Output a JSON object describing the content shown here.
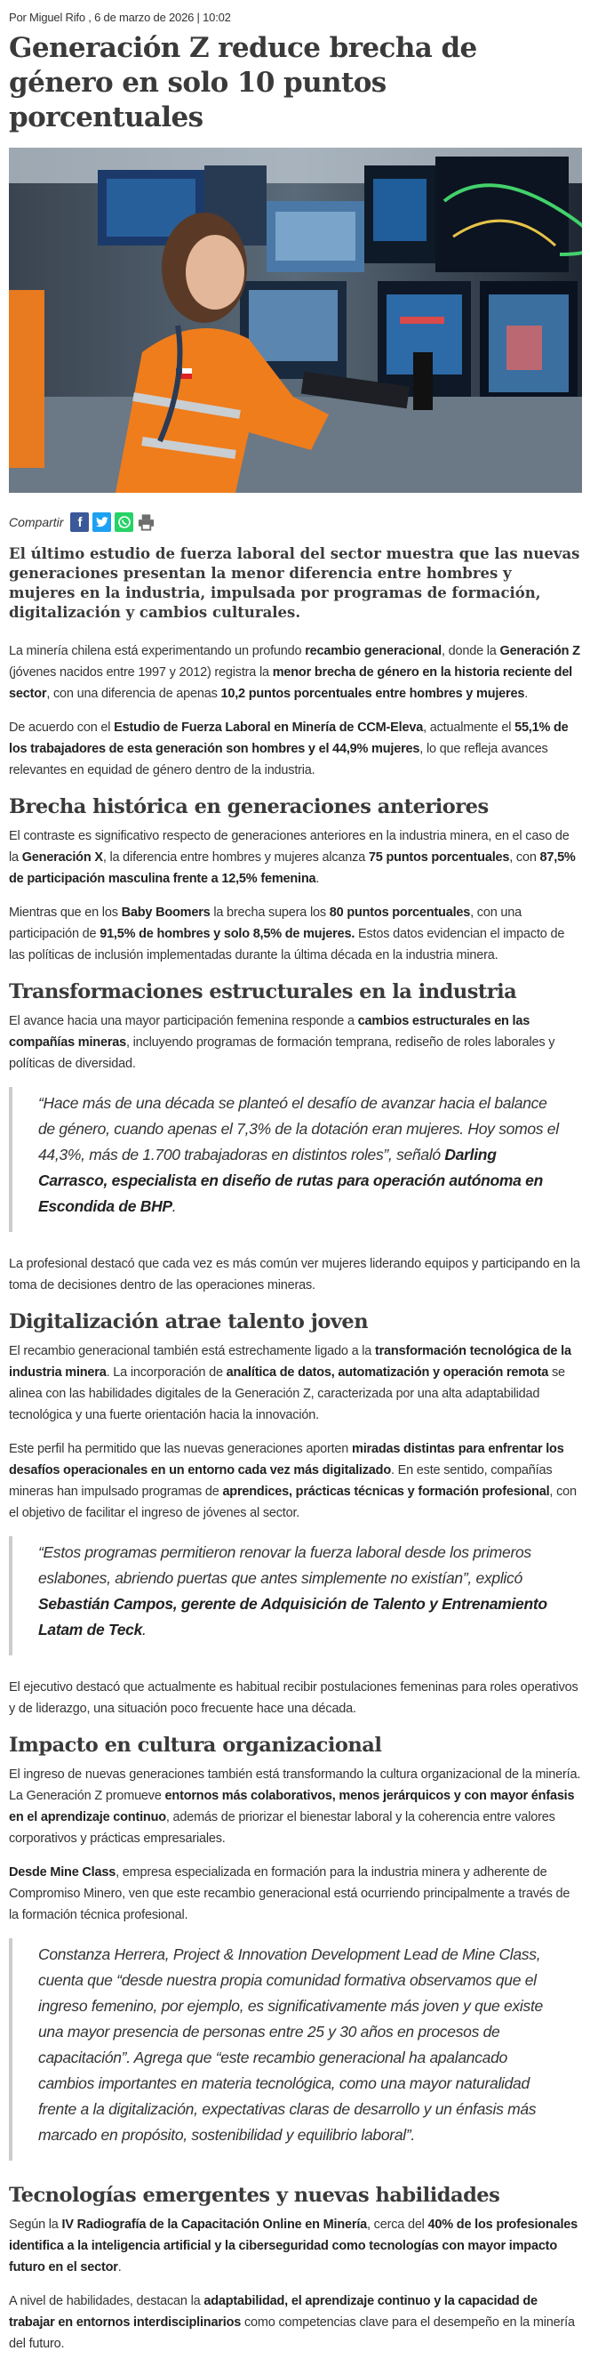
{
  "byline": "Por Miguel Rifo , 6 de marzo de 2026 | 10:02",
  "title": "Generación Z reduce brecha de género en solo 10 puntos porcentuales",
  "share": {
    "label": "Compartir",
    "icons": [
      "facebook-icon",
      "twitter-icon",
      "whatsapp-icon",
      "print-icon"
    ],
    "colors": {
      "facebook": "#3b5998",
      "twitter": "#1da1f2",
      "whatsapp": "#25d366",
      "print": "#6d6d6d"
    }
  },
  "lead": "El último estudio de fuerza laboral del sector muestra que las nuevas generaciones presentan la menor diferencia entre hombres y mujeres en la industria, impulsada por programas de formación, digitalización y cambios culturales.",
  "blocks": [
    {
      "type": "p",
      "segments": [
        [
          "La minería chilena está experimentando un profundo ",
          0
        ],
        [
          "recambio generacional",
          1
        ],
        [
          ", donde la ",
          0
        ],
        [
          "Generación Z",
          1
        ],
        [
          " (jóvenes nacidos entre 1997 y 2012) registra la ",
          0
        ],
        [
          "menor brecha de género en la historia reciente del sector",
          1
        ],
        [
          ", con una diferencia de apenas ",
          0
        ],
        [
          "10,2 puntos porcentuales entre hombres y mujeres",
          1
        ],
        [
          ".",
          0
        ]
      ]
    },
    {
      "type": "p",
      "segments": [
        [
          "De acuerdo con el ",
          0
        ],
        [
          "Estudio de Fuerza Laboral en Minería de CCM-Eleva",
          1
        ],
        [
          ", actualmente el ",
          0
        ],
        [
          "55,1% de los trabajadores de esta generación son hombres y el 44,9% mujeres",
          1
        ],
        [
          ", lo que refleja avances relevantes en equidad de género dentro de la industria.",
          0
        ]
      ]
    },
    {
      "type": "h2",
      "text": "Brecha histórica en generaciones anteriores"
    },
    {
      "type": "p",
      "segments": [
        [
          "El contraste es significativo respecto de generaciones anteriores en la industria minera, en el caso de la ",
          0
        ],
        [
          "Generación X",
          1
        ],
        [
          ", la diferencia entre hombres y mujeres alcanza ",
          0
        ],
        [
          "75 puntos porcentuales",
          1
        ],
        [
          ", con ",
          0
        ],
        [
          "87,5% de participación masculina frente a 12,5% femenina",
          1
        ],
        [
          ".",
          0
        ]
      ]
    },
    {
      "type": "p",
      "segments": [
        [
          "Mientras que en los ",
          0
        ],
        [
          "Baby Boomers",
          1
        ],
        [
          " la brecha supera los ",
          0
        ],
        [
          "80 puntos porcentuales",
          1
        ],
        [
          ", con una participación de ",
          0
        ],
        [
          "91,5% de hombres y solo 8,5% de mujeres.",
          1
        ],
        [
          " Estos datos evidencian el impacto de las políticas de inclusión implementadas durante la última década en la industria minera.",
          0
        ]
      ]
    },
    {
      "type": "h2",
      "text": "Transformaciones estructurales en la industria"
    },
    {
      "type": "p",
      "segments": [
        [
          "El avance hacia una mayor participación femenina responde a ",
          0
        ],
        [
          "cambios estructurales en las compañías mineras",
          1
        ],
        [
          ", incluyendo programas de formación temprana, rediseño de roles laborales y políticas de diversidad.",
          0
        ]
      ]
    },
    {
      "type": "quote",
      "segments": [
        [
          "“Hace más de una década se planteó el desafío de avanzar hacia el balance de género, cuando apenas el 7,3% de la dotación eran mujeres. Hoy somos el 44,3%, más de 1.700 trabajadoras en distintos roles”, señaló ",
          0
        ],
        [
          "Darling Carrasco, especialista en diseño de rutas para operación autónoma en Escondida de BHP",
          1
        ],
        [
          ".",
          0
        ]
      ]
    },
    {
      "type": "p",
      "segments": [
        [
          "La profesional destacó que cada vez es más común ver mujeres liderando equipos y participando en la toma de decisiones dentro de las operaciones mineras.",
          0
        ]
      ]
    },
    {
      "type": "h2",
      "text": "Digitalización atrae talento joven"
    },
    {
      "type": "p",
      "segments": [
        [
          "El recambio generacional también está estrechamente ligado a la ",
          0
        ],
        [
          "transformación tecnológica de la industria minera",
          1
        ],
        [
          ". La incorporación de ",
          0
        ],
        [
          "analítica de datos, automatización y operación remota",
          1
        ],
        [
          " se alinea con las habilidades digitales de la Generación Z, caracterizada por una alta adaptabilidad tecnológica y una fuerte orientación hacia la innovación.",
          0
        ]
      ]
    },
    {
      "type": "p",
      "segments": [
        [
          "Este perfil ha permitido que las nuevas generaciones aporten ",
          0
        ],
        [
          "miradas distintas para enfrentar los desafíos operacionales en un entorno cada vez más digitalizado",
          1
        ],
        [
          ". En este sentido, compañías mineras han impulsado programas de ",
          0
        ],
        [
          "aprendices, prácticas técnicas y formación profesional",
          1
        ],
        [
          ", con el objetivo de facilitar el ingreso de jóvenes al sector.",
          0
        ]
      ]
    },
    {
      "type": "quote",
      "segments": [
        [
          "“Estos programas permitieron renovar la fuerza laboral desde los primeros eslabones, abriendo puertas que antes simplemente no existían”, explicó ",
          0
        ],
        [
          "Sebastián Campos, gerente de Adquisición de Talento y Entrenamiento Latam de Teck",
          1
        ],
        [
          ".",
          0
        ]
      ]
    },
    {
      "type": "p",
      "segments": [
        [
          "El ejecutivo destacó que actualmente es habitual recibir postulaciones femeninas para roles operativos y de liderazgo, una situación poco frecuente hace una década.",
          0
        ]
      ]
    },
    {
      "type": "h2",
      "text": "Impacto en cultura organizacional"
    },
    {
      "type": "p",
      "segments": [
        [
          "El ingreso de nuevas generaciones también está transformando la cultura organizacional de la minería. La Generación Z promueve ",
          0
        ],
        [
          "entornos más colaborativos, menos jerárquicos y con mayor énfasis en el aprendizaje continuo",
          1
        ],
        [
          ", además de priorizar el bienestar laboral y la coherencia entre valores corporativos y prácticas empresariales.",
          0
        ]
      ]
    },
    {
      "type": "p",
      "segments": [
        [
          "Desde Mine Class",
          1
        ],
        [
          ", empresa especializada en formación para la industria minera y adherente de Compromiso Minero, ven que este recambio generacional está ocurriendo principalmente a través de la formación técnica profesional.",
          0
        ]
      ]
    },
    {
      "type": "quote",
      "segments": [
        [
          "Constanza Herrera, Project & Innovation Development Lead de Mine Class, cuenta que “desde nuestra propia comunidad formativa observamos que el ingreso femenino, por ejemplo, es significativamente más joven y que existe una mayor presencia de personas entre 25 y 30 años en procesos de capacitación”. Agrega que “este recambio generacional ha apalancado cambios importantes en materia tecnológica, como una mayor naturalidad frente a la digitalización, expectativas claras de desarrollo y un énfasis más marcado en propósito, sostenibilidad y equilibrio laboral”.",
          0
        ]
      ]
    },
    {
      "type": "h2",
      "text": "Tecnologías emergentes y nuevas habilidades"
    },
    {
      "type": "p",
      "segments": [
        [
          "Según la ",
          0
        ],
        [
          "IV Radiografía de la Capacitación Online en Minería",
          1
        ],
        [
          ", cerca del ",
          0
        ],
        [
          "40% de los profesionales identifica a la inteligencia artificial y la ciberseguridad como tecnologías con mayor impacto futuro en el sector",
          1
        ],
        [
          ".",
          0
        ]
      ]
    },
    {
      "type": "p",
      "segments": [
        [
          "A nivel de habilidades, destacan la ",
          0
        ],
        [
          "adaptabilidad, el aprendizaje continuo y la capacidad de trabajar en entornos interdisciplinarios",
          1
        ],
        [
          " como competencias clave para el desempeño en la minería del futuro.",
          0
        ]
      ]
    }
  ]
}
